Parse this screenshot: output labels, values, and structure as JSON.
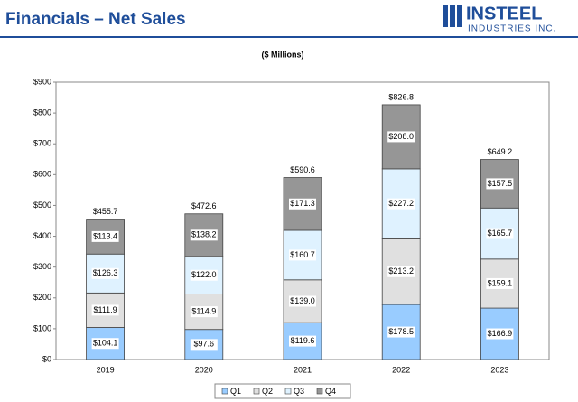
{
  "header": {
    "title": "Financials – Net Sales",
    "logo_name": "INSTEEL",
    "logo_tagline": "INDUSTRIES INC."
  },
  "chart_data": {
    "type": "stacked_bar",
    "subtitle": "($ Millions)",
    "categories": [
      "2019",
      "2020",
      "2021",
      "2022",
      "2023"
    ],
    "series": [
      {
        "name": "Q1",
        "color": "#99ccff",
        "values": [
          104.1,
          97.6,
          119.6,
          178.5,
          166.9
        ],
        "value_labels": [
          "$104.1",
          "$97.6",
          "$119.6",
          "$178.5",
          "$166.9"
        ]
      },
      {
        "name": "Q2",
        "color": "#e0e0e0",
        "values": [
          111.9,
          114.9,
          139.0,
          213.2,
          159.1
        ],
        "value_labels": [
          "$111.9",
          "$114.9",
          "$139.0",
          "$213.2",
          "$159.1"
        ]
      },
      {
        "name": "Q3",
        "color": "#dff2ff",
        "values": [
          126.3,
          122.0,
          160.7,
          227.2,
          165.7
        ],
        "value_labels": [
          "$126.3",
          "$122.0",
          "$160.7",
          "$227.2",
          "$165.7"
        ]
      },
      {
        "name": "Q4",
        "color": "#969696",
        "values": [
          113.4,
          138.2,
          171.3,
          208.0,
          157.5
        ],
        "value_labels": [
          "$113.4",
          "$138.2",
          "$171.3",
          "$208.0",
          "$157.5"
        ]
      }
    ],
    "totals": {
      "values": [
        455.7,
        472.6,
        590.6,
        826.8,
        649.2
      ],
      "value_labels": [
        "$455.7",
        "$472.6",
        "$590.6",
        "$826.8",
        "$649.2"
      ]
    },
    "ylim": [
      0,
      900
    ],
    "yticks": [
      {
        "value": 0,
        "label": "$0"
      },
      {
        "value": 100,
        "label": "$100"
      },
      {
        "value": 200,
        "label": "$200"
      },
      {
        "value": 300,
        "label": "$300"
      },
      {
        "value": 400,
        "label": "$400"
      },
      {
        "value": 500,
        "label": "$500"
      },
      {
        "value": 600,
        "label": "$600"
      },
      {
        "value": 700,
        "label": "$700"
      },
      {
        "value": 800,
        "label": "$800"
      },
      {
        "value": 900,
        "label": "$900"
      }
    ],
    "grid": false,
    "legend": "bottom"
  }
}
